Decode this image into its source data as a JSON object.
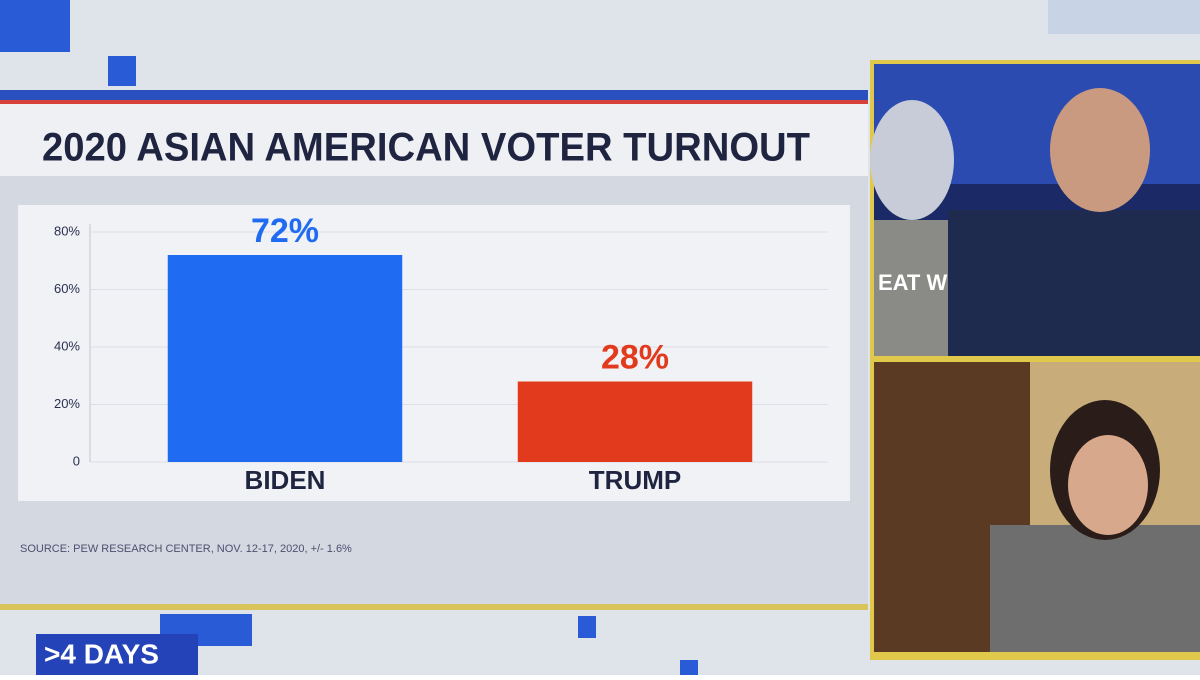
{
  "chart_data": {
    "type": "bar",
    "title": "2020 ASIAN AMERICAN VOTER TURNOUT",
    "categories": [
      "BIDEN",
      "TRUMP"
    ],
    "values": [
      72,
      28
    ],
    "value_labels": [
      "72%",
      "28%"
    ],
    "colors": [
      "#1f6bf2",
      "#e23a1d"
    ],
    "ylim": [
      0,
      80
    ],
    "yticks": [
      0,
      {
        "value": 20,
        "label": "20%"
      },
      {
        "value": 40,
        "label": "40%"
      },
      {
        "value": 60,
        "label": "60%"
      },
      {
        "value": 80,
        "label": "80%"
      }
    ],
    "source": "SOURCE: PEW RESEARCH CENTER, NOV. 12-17, 2020, +/- 1.6%"
  },
  "banner": ">4 DAYS",
  "video_sign": "EAT WITH A"
}
